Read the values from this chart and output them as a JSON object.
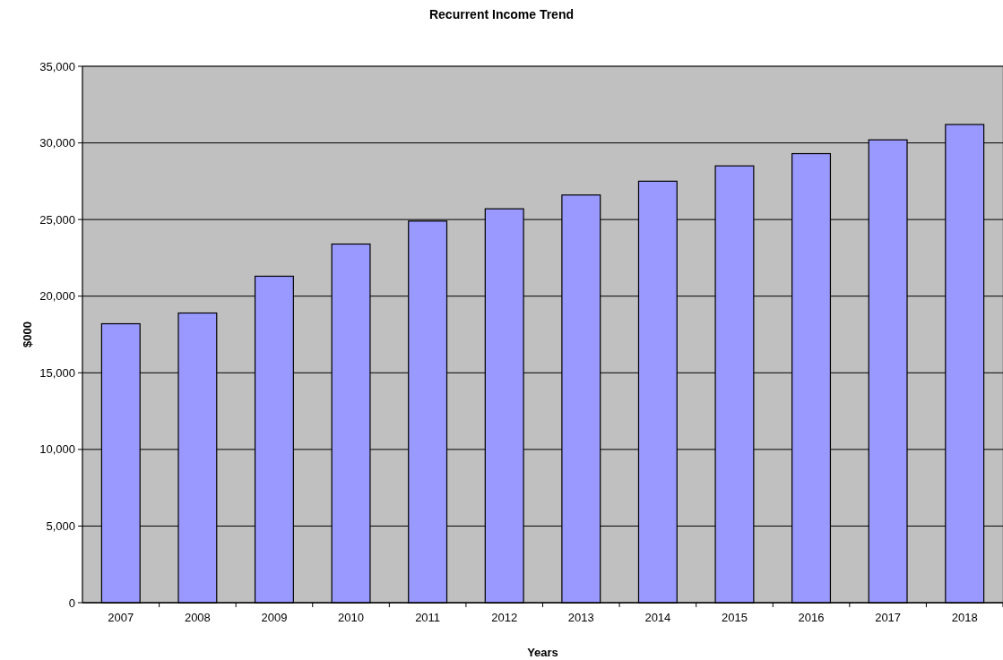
{
  "chart_data": {
    "type": "bar",
    "title": "Recurrent Income Trend",
    "xlabel": "Years",
    "ylabel": "$000",
    "categories": [
      "2007",
      "2008",
      "2009",
      "2010",
      "2011",
      "2012",
      "2013",
      "2014",
      "2015",
      "2016",
      "2017",
      "2018"
    ],
    "values": [
      18200,
      18900,
      21300,
      23400,
      24900,
      25700,
      26600,
      27500,
      28500,
      29300,
      30200,
      31200
    ],
    "color": "#9999ff",
    "ylim": [
      0,
      35000
    ],
    "yticks": [
      {
        "value": 0,
        "label": "0"
      },
      {
        "value": 5000,
        "label": "5,000"
      },
      {
        "value": 10000,
        "label": "10,000"
      },
      {
        "value": 15000,
        "label": "15,000"
      },
      {
        "value": 20000,
        "label": "20,000"
      },
      {
        "value": 25000,
        "label": "25,000"
      },
      {
        "value": 30000,
        "label": "30,000"
      },
      {
        "value": 35000,
        "label": "35,000"
      }
    ],
    "grid": "y"
  }
}
